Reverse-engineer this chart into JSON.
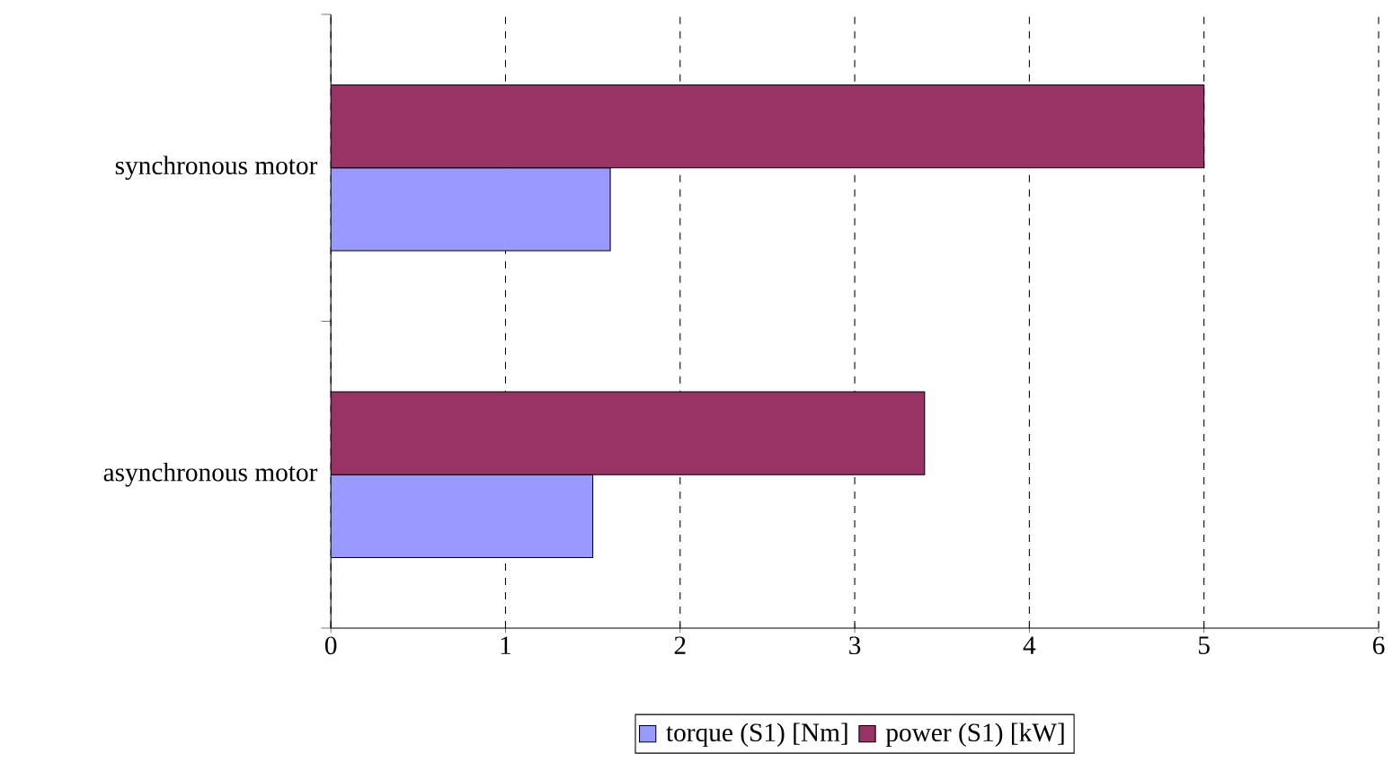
{
  "chart_data": {
    "type": "bar",
    "orientation": "horizontal",
    "categories": [
      "synchronous motor",
      "asynchronous motor"
    ],
    "series": [
      {
        "name": "torque (S1) [Nm]",
        "color": "#9999ff",
        "values": [
          1.6,
          1.5
        ]
      },
      {
        "name": "power (S1) [kW]",
        "color": "#993366",
        "values": [
          5.0,
          3.4
        ]
      }
    ],
    "xlim": [
      0,
      6
    ],
    "xticks": [
      0,
      1,
      2,
      3,
      4,
      5,
      6
    ],
    "grid": "x",
    "legend": "bottom"
  }
}
